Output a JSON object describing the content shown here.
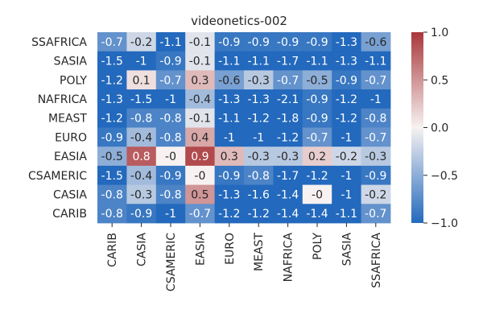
{
  "chart_data": {
    "type": "heatmap",
    "title": "videonetics-002",
    "rows": [
      "SSAFRICA",
      "SASIA",
      "POLY",
      "NAFRICA",
      "MEAST",
      "EURO",
      "EASIA",
      "CSAMERIC",
      "CASIA",
      "CARIB"
    ],
    "columns": [
      "CARIB",
      "CASIA",
      "CSAMERIC",
      "EASIA",
      "EURO",
      "MEAST",
      "NAFRICA",
      "POLY",
      "SASIA",
      "SSAFRICA"
    ],
    "values": [
      [
        -0.7,
        -0.2,
        -1.1,
        -0.1,
        -0.9,
        -0.9,
        -0.9,
        -0.9,
        -1.3,
        -0.6
      ],
      [
        -1.5,
        -1,
        -0.9,
        -0.1,
        -1.1,
        -1.1,
        -1.7,
        -1.1,
        -1.3,
        -1.1
      ],
      [
        -1.2,
        0.1,
        -0.7,
        0.3,
        -0.6,
        -0.3,
        -0.7,
        -0.5,
        -0.9,
        -0.7
      ],
      [
        -1.3,
        -1.5,
        -1,
        -0.4,
        -1.3,
        -1.3,
        -2.1,
        -0.9,
        -1.2,
        -1
      ],
      [
        -1.2,
        -0.8,
        -0.8,
        -0.1,
        -1.1,
        -1.2,
        -1.8,
        -0.9,
        -1.2,
        -0.8
      ],
      [
        -0.9,
        -0.4,
        -0.8,
        0.4,
        -1,
        -1,
        -1.2,
        -0.7,
        -1,
        -0.7
      ],
      [
        -0.5,
        0.8,
        0,
        0.9,
        0.3,
        -0.3,
        -0.3,
        0.2,
        -0.2,
        -0.3
      ],
      [
        -1.5,
        -0.4,
        -0.9,
        0,
        -0.9,
        -0.8,
        -1.7,
        -1.2,
        -1,
        -0.9
      ],
      [
        -0.8,
        -0.3,
        -0.8,
        0.5,
        -1.3,
        -1.6,
        -1.4,
        0,
        -1,
        -0.2
      ],
      [
        -0.8,
        -0.9,
        -1,
        -0.7,
        -1.2,
        -1.2,
        -1.4,
        -1.4,
        -1.1,
        -0.7
      ]
    ],
    "cell_labels": [
      [
        "-0.7",
        "-0.2",
        "-1.1",
        "-0.1",
        "-0.9",
        "-0.9",
        "-0.9",
        "-0.9",
        "-1.3",
        "-0.6"
      ],
      [
        "-1.5",
        "-1",
        "-0.9",
        "-0.1",
        "-1.1",
        "-1.1",
        "-1.7",
        "-1.1",
        "-1.3",
        "-1.1"
      ],
      [
        "-1.2",
        "0.1",
        "-0.7",
        "0.3",
        "-0.6",
        "-0.3",
        "-0.7",
        "-0.5",
        "-0.9",
        "-0.7"
      ],
      [
        "-1.3",
        "-1.5",
        "-1",
        "-0.4",
        "-1.3",
        "-1.3",
        "-2.1",
        "-0.9",
        "-1.2",
        "-1"
      ],
      [
        "-1.2",
        "-0.8",
        "-0.8",
        "-0.1",
        "-1.1",
        "-1.2",
        "-1.8",
        "-0.9",
        "-1.2",
        "-0.8"
      ],
      [
        "-0.9",
        "-0.4",
        "-0.8",
        "0.4",
        "-1",
        "-1",
        "-1.2",
        "-0.7",
        "-1",
        "-0.7"
      ],
      [
        "-0.5",
        "0.8",
        "-0",
        "0.9",
        "0.3",
        "-0.3",
        "-0.3",
        "0.2",
        "-0.2",
        "-0.3"
      ],
      [
        "-1.5",
        "-0.4",
        "-0.9",
        "-0",
        "-0.9",
        "-0.8",
        "-1.7",
        "-1.2",
        "-1",
        "-0.9"
      ],
      [
        "-0.8",
        "-0.3",
        "-0.8",
        "0.5",
        "-1.3",
        "-1.6",
        "-1.4",
        "-0",
        "-1",
        "-0.2"
      ],
      [
        "-0.8",
        "-0.9",
        "-1",
        "-0.7",
        "-1.2",
        "-1.2",
        "-1.4",
        "-1.4",
        "-1.1",
        "-0.7"
      ]
    ],
    "colorbar": {
      "vmin": -1.0,
      "vmax": 1.0,
      "ticks": [
        1.0,
        0.5,
        0.0,
        -0.5,
        -1.0
      ],
      "tick_labels": [
        "1.0",
        "0.5",
        "0.0",
        "−0.5",
        "−1.0"
      ]
    },
    "colormap": {
      "name": "vlag",
      "low": "#2369bd",
      "mid": "#f7f2f1",
      "high": "#a9373b"
    },
    "text_colors": {
      "dark": "#262626",
      "light": "#ffffff"
    }
  }
}
